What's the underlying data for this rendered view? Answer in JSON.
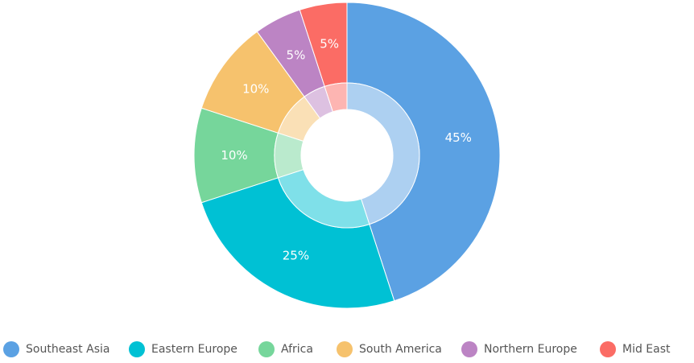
{
  "chart_data": {
    "type": "pie",
    "variant": "donut-with-inner-ring",
    "title": "",
    "legend_position": "bottom",
    "slices": [
      {
        "name": "Southeast Asia",
        "value": 45,
        "label": "45%",
        "color": "#5ba1e3"
      },
      {
        "name": "Eastern Europe",
        "value": 25,
        "label": "25%",
        "color": "#00c1d4"
      },
      {
        "name": "Africa",
        "value": 10,
        "label": "10%",
        "color": "#76d69b"
      },
      {
        "name": "South America",
        "value": 10,
        "label": "10%",
        "color": "#f6c26d"
      },
      {
        "name": "Northern Europe",
        "value": 5,
        "label": "5%",
        "color": "#bc84c4"
      },
      {
        "name": "Mid East",
        "value": 5,
        "label": "5%",
        "color": "#fb6c65"
      }
    ]
  }
}
